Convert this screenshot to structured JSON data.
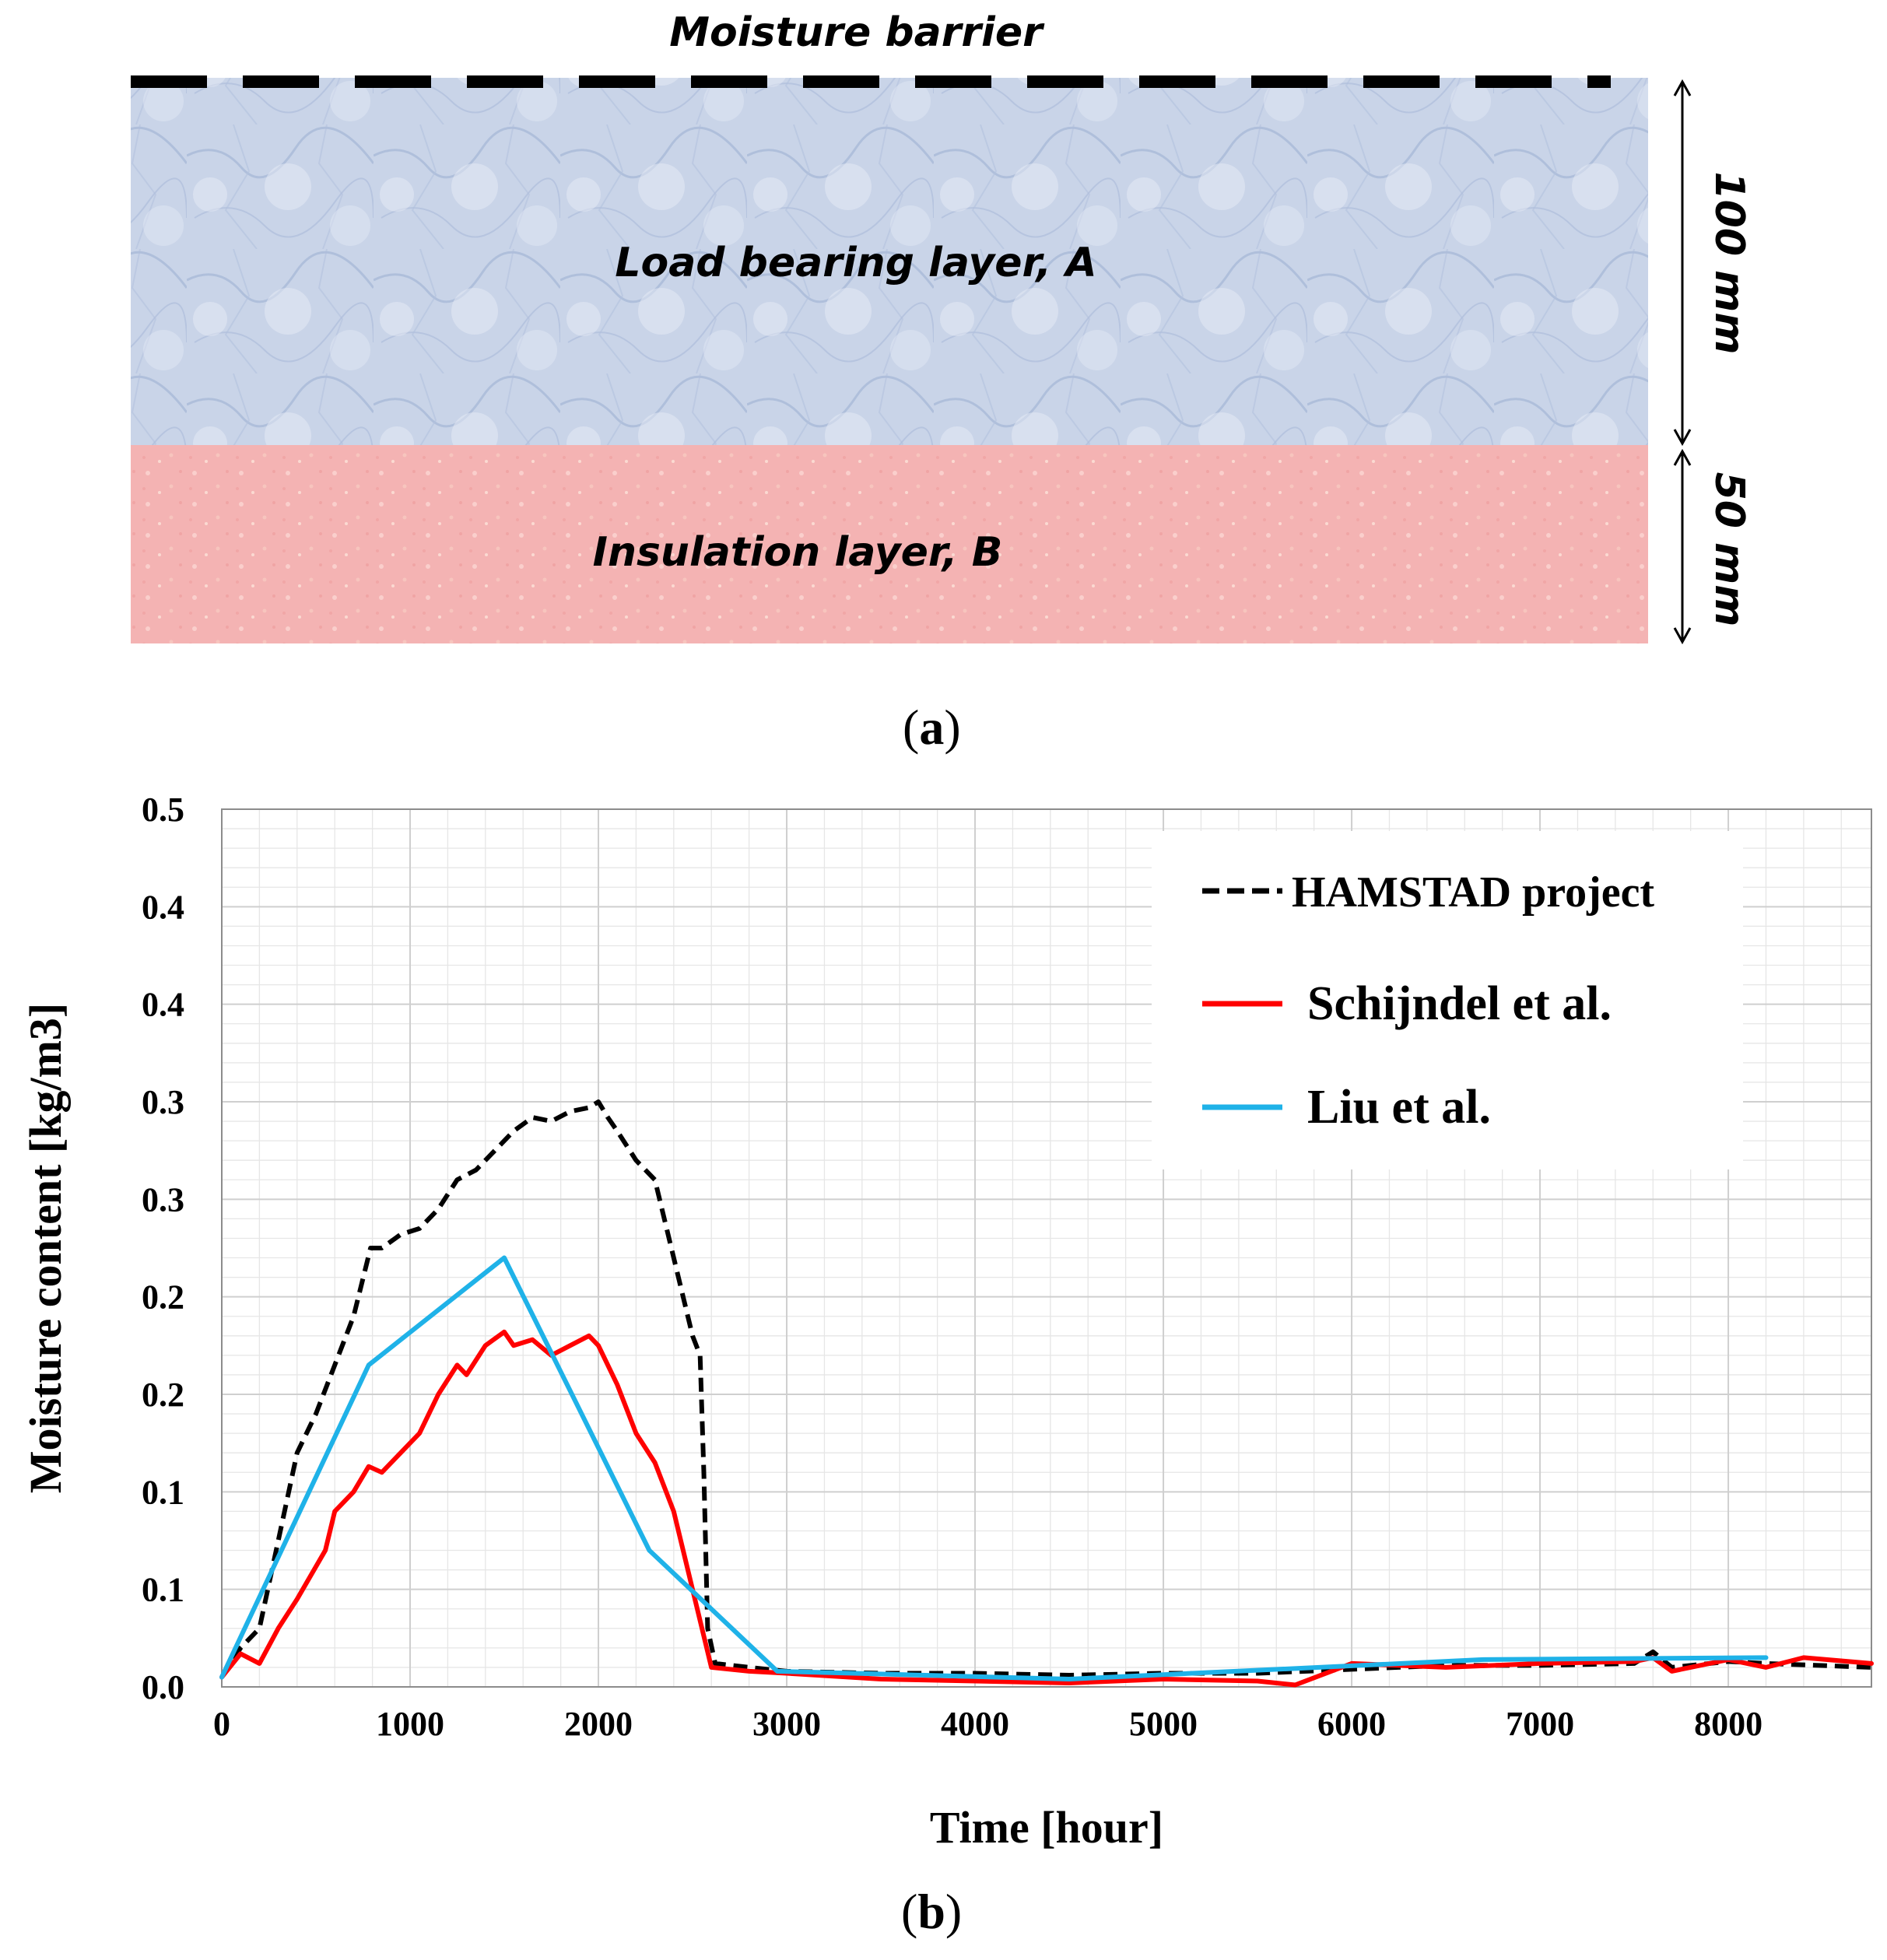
{
  "panel_a": {
    "moisture_barrier_label": "Moisture barrier",
    "layer_a_label": "Load bearing layer, A",
    "layer_b_label": "Insulation layer, B",
    "dim_top_label": "100 mm",
    "dim_bottom_label": "50 mm",
    "caption_open": "(",
    "caption_letter": "a",
    "caption_close": ")",
    "colors": {
      "layer_a": "#c3cfe4",
      "layer_b": "#f4b6b6",
      "barrier": "#000000"
    }
  },
  "panel_b": {
    "caption_open": "(",
    "caption_letter": "b",
    "caption_close": ")"
  },
  "chart_data": {
    "type": "line",
    "title": "",
    "xlabel": "Time [hour]",
    "ylabel": "Moisture content [kg/m3]",
    "xlim": [
      0,
      8760
    ],
    "ylim": [
      0,
      0.45
    ],
    "x_ticks": [
      0,
      1000,
      2000,
      3000,
      4000,
      5000,
      6000,
      7000,
      8000
    ],
    "y_tick_labels": [
      "0.0",
      "0.1",
      "0.1",
      "0.2",
      "0.2",
      "0.3",
      "0.3",
      "0.4",
      "0.4",
      "0.5"
    ],
    "grid": true,
    "legend_position": "top-right",
    "series": [
      {
        "name": "HAMSTAD project",
        "color": "#000000",
        "dash": true,
        "points": [
          [
            0,
            0.005
          ],
          [
            100,
            0.02
          ],
          [
            200,
            0.03
          ],
          [
            300,
            0.075
          ],
          [
            400,
            0.12
          ],
          [
            500,
            0.14
          ],
          [
            600,
            0.165
          ],
          [
            700,
            0.19
          ],
          [
            790,
            0.225
          ],
          [
            850,
            0.225
          ],
          [
            950,
            0.232
          ],
          [
            1050,
            0.235
          ],
          [
            1150,
            0.245
          ],
          [
            1250,
            0.26
          ],
          [
            1350,
            0.265
          ],
          [
            1450,
            0.275
          ],
          [
            1550,
            0.285
          ],
          [
            1650,
            0.292
          ],
          [
            1750,
            0.29
          ],
          [
            1850,
            0.295
          ],
          [
            1950,
            0.297
          ],
          [
            2000,
            0.3
          ],
          [
            2050,
            0.292
          ],
          [
            2100,
            0.285
          ],
          [
            2200,
            0.27
          ],
          [
            2300,
            0.26
          ],
          [
            2350,
            0.24
          ],
          [
            2400,
            0.22
          ],
          [
            2450,
            0.2
          ],
          [
            2500,
            0.18
          ],
          [
            2540,
            0.17
          ],
          [
            2560,
            0.11
          ],
          [
            2580,
            0.03
          ],
          [
            2620,
            0.012
          ],
          [
            2800,
            0.01
          ],
          [
            3000,
            0.008
          ],
          [
            3500,
            0.007
          ],
          [
            4000,
            0.007
          ],
          [
            4500,
            0.006
          ],
          [
            5000,
            0.007
          ],
          [
            5500,
            0.007
          ],
          [
            6000,
            0.009
          ],
          [
            6500,
            0.011
          ],
          [
            7000,
            0.011
          ],
          [
            7500,
            0.012
          ],
          [
            7600,
            0.018
          ],
          [
            7700,
            0.01
          ],
          [
            8000,
            0.013
          ],
          [
            8200,
            0.012
          ],
          [
            8760,
            0.01
          ]
        ]
      },
      {
        "name": "Schijndel et al.",
        "color": "#ff0000",
        "dash": false,
        "points": [
          [
            0,
            0.005
          ],
          [
            100,
            0.017
          ],
          [
            200,
            0.012
          ],
          [
            300,
            0.03
          ],
          [
            400,
            0.045
          ],
          [
            550,
            0.07
          ],
          [
            600,
            0.09
          ],
          [
            700,
            0.1
          ],
          [
            780,
            0.113
          ],
          [
            850,
            0.11
          ],
          [
            950,
            0.12
          ],
          [
            1050,
            0.13
          ],
          [
            1150,
            0.15
          ],
          [
            1250,
            0.165
          ],
          [
            1300,
            0.16
          ],
          [
            1400,
            0.175
          ],
          [
            1500,
            0.182
          ],
          [
            1550,
            0.175
          ],
          [
            1650,
            0.178
          ],
          [
            1750,
            0.17
          ],
          [
            1850,
            0.175
          ],
          [
            1950,
            0.18
          ],
          [
            2000,
            0.175
          ],
          [
            2100,
            0.155
          ],
          [
            2200,
            0.13
          ],
          [
            2300,
            0.115
          ],
          [
            2400,
            0.09
          ],
          [
            2450,
            0.07
          ],
          [
            2500,
            0.05
          ],
          [
            2550,
            0.03
          ],
          [
            2600,
            0.01
          ],
          [
            2800,
            0.008
          ],
          [
            3000,
            0.007
          ],
          [
            3500,
            0.004
          ],
          [
            4000,
            0.003
          ],
          [
            4500,
            0.002
          ],
          [
            5000,
            0.004
          ],
          [
            5500,
            0.003
          ],
          [
            5700,
            0.001
          ],
          [
            6000,
            0.012
          ],
          [
            6500,
            0.01
          ],
          [
            7000,
            0.012
          ],
          [
            7500,
            0.013
          ],
          [
            7600,
            0.015
          ],
          [
            7700,
            0.008
          ],
          [
            8000,
            0.014
          ],
          [
            8200,
            0.01
          ],
          [
            8400,
            0.015
          ],
          [
            8760,
            0.012
          ]
        ]
      },
      {
        "name": "Liu et al.",
        "color": "#1fb2e8",
        "dash": false,
        "points": [
          [
            0,
            0.005
          ],
          [
            780,
            0.165
          ],
          [
            1500,
            0.22
          ],
          [
            2270,
            0.07
          ],
          [
            2950,
            0.008
          ],
          [
            4500,
            0.004
          ],
          [
            6700,
            0.014
          ],
          [
            8200,
            0.015
          ]
        ]
      }
    ]
  }
}
